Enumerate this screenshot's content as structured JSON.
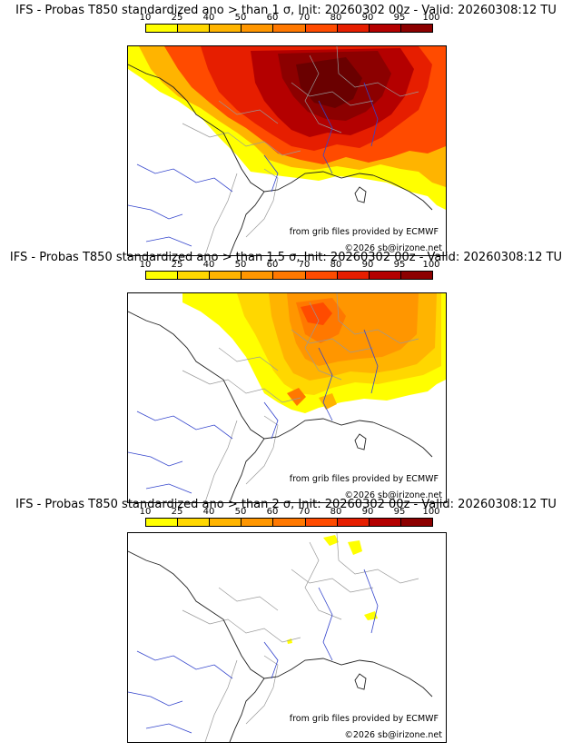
{
  "colorbar": {
    "labels": [
      "10",
      "25",
      "40",
      "50",
      "60",
      "70",
      "80",
      "90",
      "95",
      "100"
    ],
    "colors": [
      "#ffff00",
      "#ffd700",
      "#ffb400",
      "#ff9600",
      "#ff7800",
      "#ff4b00",
      "#e61e00",
      "#b40000",
      "#8c0000"
    ]
  },
  "panels": [
    {
      "title": "IFS - Probas T850  standardized ano > than 1 σ, Init: 20260302 00z - Valid: 20260308:12 TU",
      "source": "from grib files provided by ECMWF",
      "copyright": "©2026 sb@irizone.net"
    },
    {
      "title": "IFS - Probas T850  standardized ano > than 1.5 σ, Init: 20260302 00z - Valid: 20260308:12 TU",
      "source": "from grib files provided by ECMWF",
      "copyright": "©2026 sb@irizone.net"
    },
    {
      "title": "IFS - Probas T850  standardized ano > than 2 σ, Init: 20260302 00z - Valid: 20260308:12 TU",
      "source": "from grib files provided by ECMWF",
      "copyright": "©2026 sb@irizone.net"
    }
  ]
}
